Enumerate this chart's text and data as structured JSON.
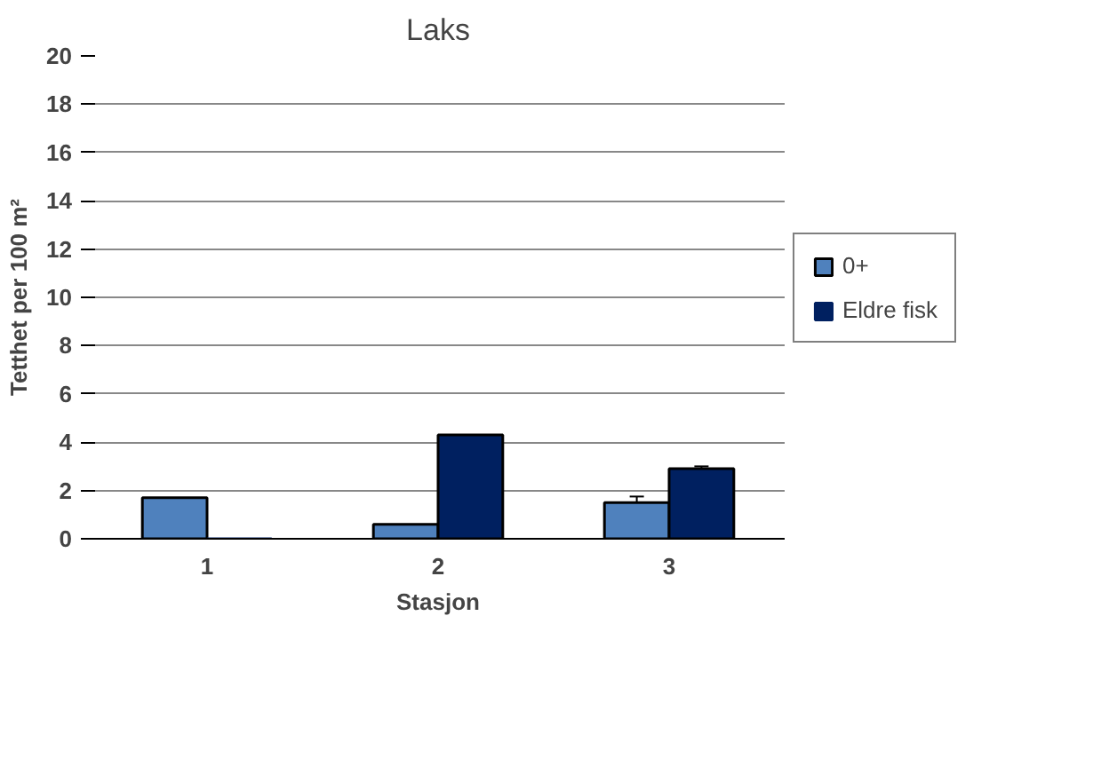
{
  "chart_data": {
    "type": "bar",
    "title": "Laks",
    "xlabel": "Stasjon",
    "ylabel": "Tetthet per 100 m²",
    "categories": [
      "1",
      "2",
      "3"
    ],
    "series": [
      {
        "name": "0+",
        "color": "#4f81bd",
        "values": [
          1.7,
          0.6,
          1.5
        ],
        "errors": [
          null,
          null,
          0.25
        ]
      },
      {
        "name": "Eldre fisk",
        "color": "#002060",
        "values": [
          0,
          4.3,
          2.9
        ],
        "errors": [
          null,
          null,
          0.1
        ]
      }
    ],
    "ylim": [
      0,
      20
    ],
    "yticks": [
      0,
      2,
      4,
      6,
      8,
      10,
      12,
      14,
      16,
      18,
      20
    ],
    "grid": "y",
    "legend": "right"
  }
}
